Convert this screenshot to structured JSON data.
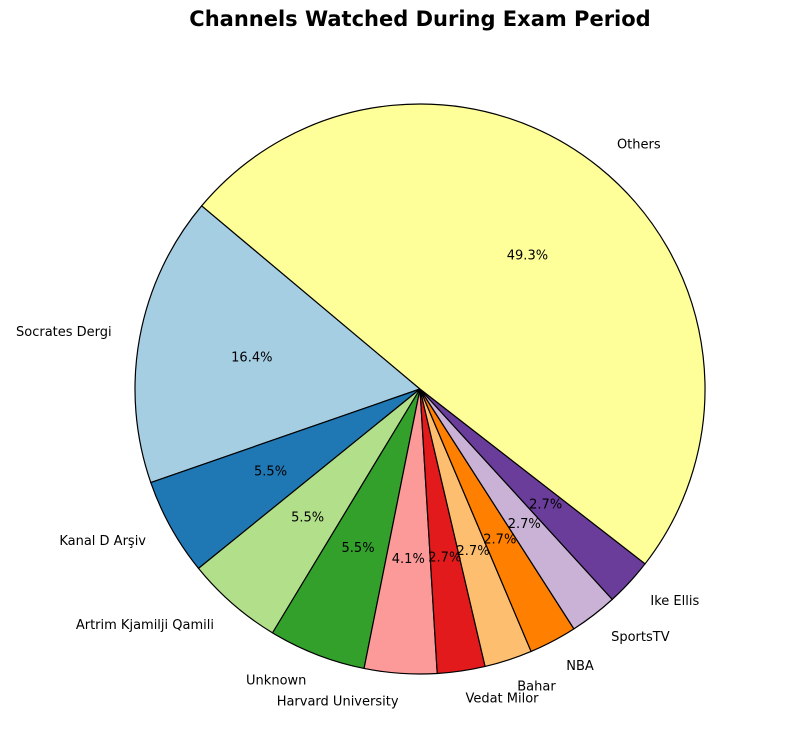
{
  "chart_data": {
    "type": "pie",
    "title": "Channels Watched During Exam Period",
    "start_angle_deg": 140,
    "direction": "counterclockwise",
    "slices": [
      {
        "label": "Socrates Dergi",
        "value": 16.4,
        "pct_label": "16.4%",
        "color": "#a6cee3"
      },
      {
        "label": "Kanal D Arşiv",
        "value": 5.5,
        "pct_label": "5.5%",
        "color": "#1f78b4"
      },
      {
        "label": "Artrim Kjamilji Qamili",
        "value": 5.5,
        "pct_label": "5.5%",
        "color": "#b2df8a"
      },
      {
        "label": "Unknown",
        "value": 5.5,
        "pct_label": "5.5%",
        "color": "#33a02c"
      },
      {
        "label": "Harvard University",
        "value": 4.1,
        "pct_label": "4.1%",
        "color": "#fb9a99"
      },
      {
        "label": "Vedat Milor",
        "value": 2.7,
        "pct_label": "2.7%",
        "color": "#e31a1c"
      },
      {
        "label": "Bahar",
        "value": 2.7,
        "pct_label": "2.7%",
        "color": "#fdbf6f"
      },
      {
        "label": "NBA",
        "value": 2.7,
        "pct_label": "2.7%",
        "color": "#ff7f00"
      },
      {
        "label": "SportsTV",
        "value": 2.7,
        "pct_label": "2.7%",
        "color": "#cab2d6"
      },
      {
        "label": "Ike Ellis",
        "value": 2.7,
        "pct_label": "2.7%",
        "color": "#6a3d9a"
      },
      {
        "label": "Others",
        "value": 49.3,
        "pct_label": "49.3%",
        "color": "#ffff99"
      }
    ]
  }
}
